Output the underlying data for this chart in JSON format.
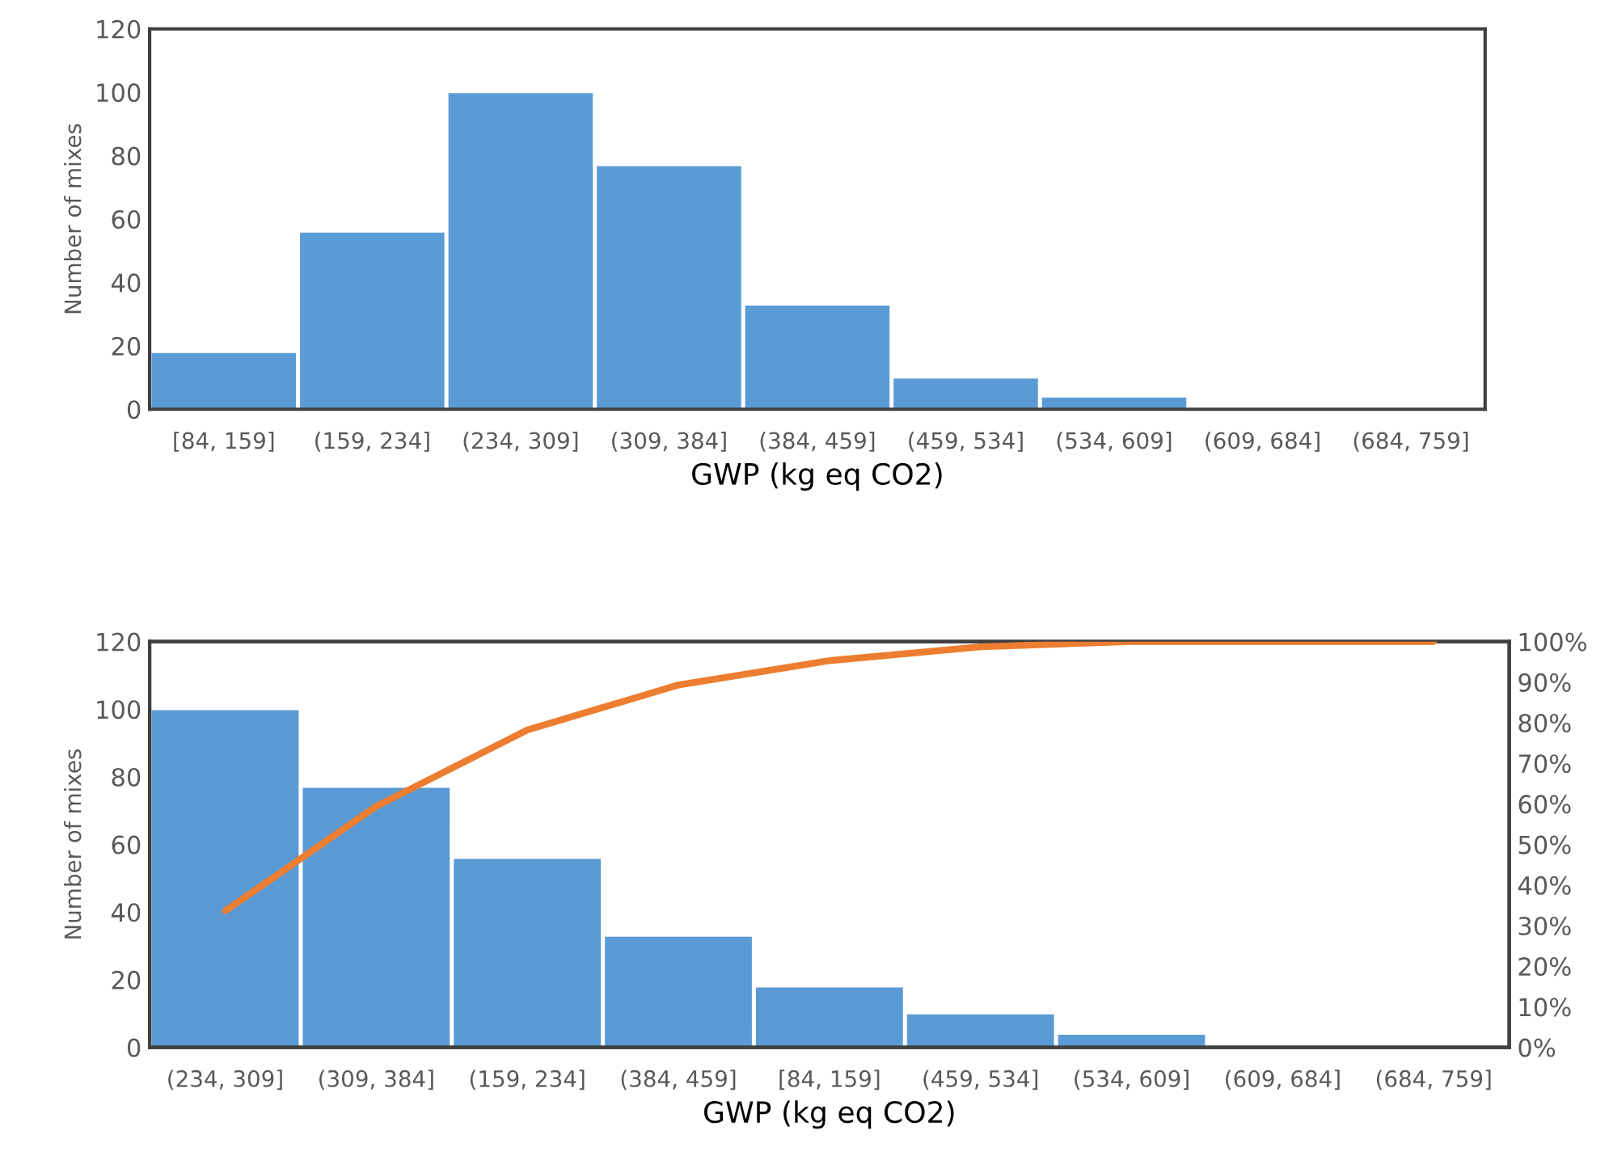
{
  "chart_data": [
    {
      "type": "bar",
      "xlabel": "GWP (kg eq CO2)",
      "ylabel": "Number of mixes",
      "categories": [
        "[84, 159]",
        "(159, 234]",
        "(234, 309]",
        "(309, 384]",
        "(384, 459]",
        "(459, 534]",
        "(534, 609]",
        "(609, 684]",
        "(684, 759]"
      ],
      "series": [
        {
          "color": "#5b9bd5",
          "values": [
            18,
            56,
            100,
            77,
            33,
            10,
            4,
            0,
            0
          ]
        }
      ],
      "ylim": [
        0,
        120
      ],
      "yticks": [
        0,
        20,
        40,
        60,
        80,
        100,
        120
      ],
      "grid": false,
      "legend": false
    },
    {
      "type": "bar",
      "xlabel": "GWP (kg eq CO2)",
      "ylabel": "Number of mixes",
      "categories": [
        "(234, 309]",
        "(309, 384]",
        "(159, 234]",
        "(384, 459]",
        "[84, 159]",
        "(459, 534]",
        "(534, 609]",
        "(609, 684]",
        "(684, 759]"
      ],
      "series": [
        {
          "color": "#5b9bd5",
          "values": [
            100,
            77,
            56,
            33,
            18,
            10,
            4,
            0,
            0
          ]
        },
        {
          "type": "line",
          "axis": "y2",
          "color": "#ed7d31",
          "values": [
            33.6,
            59.4,
            78.2,
            89.3,
            95.3,
            98.7,
            100,
            100,
            100
          ]
        }
      ],
      "ylim": [
        0,
        120
      ],
      "yticks": [
        0,
        20,
        40,
        60,
        80,
        100,
        120
      ],
      "y2lim": [
        0,
        100
      ],
      "y2ticks": [
        {
          "value": 0,
          "label": "0%"
        },
        {
          "value": 10,
          "label": "10%"
        },
        {
          "value": 20,
          "label": "20%"
        },
        {
          "value": 30,
          "label": "30%"
        },
        {
          "value": 40,
          "label": "40%"
        },
        {
          "value": 50,
          "label": "50%"
        },
        {
          "value": 60,
          "label": "60%"
        },
        {
          "value": 70,
          "label": "70%"
        },
        {
          "value": 80,
          "label": "80%"
        },
        {
          "value": 90,
          "label": "90%"
        },
        {
          "value": 100,
          "label": "100%"
        }
      ],
      "grid": false,
      "legend": false,
      "marker": "none",
      "line_style": "solid"
    }
  ]
}
